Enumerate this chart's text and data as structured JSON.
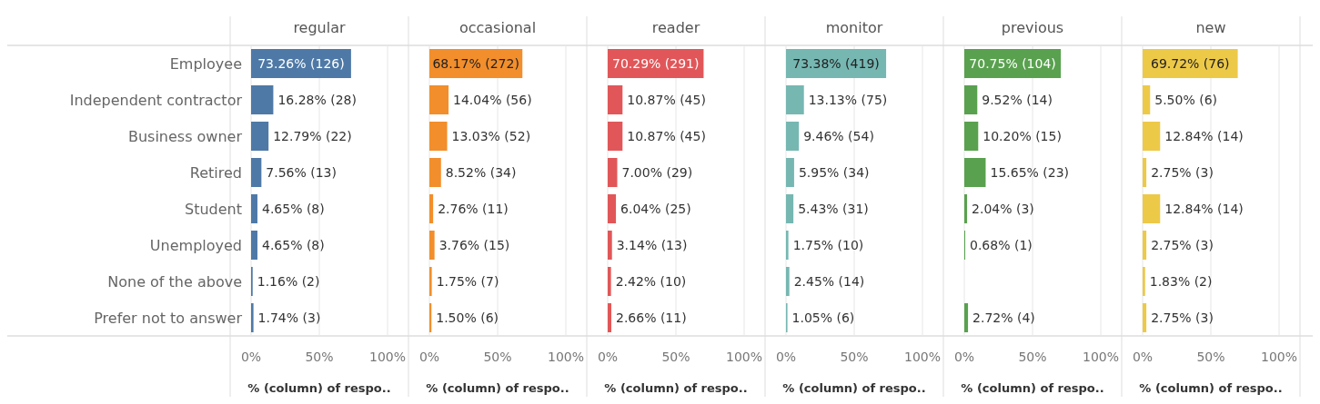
{
  "chart_data": [
    {
      "type": "bar",
      "orientation": "horizontal",
      "title": "regular",
      "xlabel": "% (column) of respo..",
      "color": "#4e79a7",
      "grid": "x",
      "categories": [
        "Employee",
        "Independent contractor",
        "Business owner",
        "Retired",
        "Student",
        "Unemployed",
        "None of the above",
        "Prefer not to answer"
      ],
      "values": [
        73.26,
        16.28,
        12.79,
        7.56,
        4.65,
        4.65,
        1.16,
        1.74
      ],
      "value_labels": [
        "73.26% (126)",
        "16.28% (28)",
        "12.79% (22)",
        "7.56% (13)",
        "4.65% (8)",
        "4.65% (8)",
        "1.16% (2)",
        "1.74% (3)"
      ],
      "xlim": [
        0,
        100
      ],
      "xticks": [
        {
          "value": 0,
          "label": "0%"
        },
        {
          "value": 50,
          "label": "50%"
        },
        {
          "value": 100,
          "label": "100%"
        }
      ]
    },
    {
      "type": "bar",
      "orientation": "horizontal",
      "title": "occasional",
      "xlabel": "% (column) of respo..",
      "color": "#f28e2b",
      "grid": "x",
      "tick_labels": "x",
      "categories": [
        null,
        null,
        null,
        null,
        null,
        null,
        null,
        null
      ],
      "values": [
        68.17,
        14.04,
        13.03,
        8.52,
        2.76,
        3.76,
        1.75,
        1.5
      ],
      "value_labels": [
        "68.17% (272)",
        "14.04% (56)",
        "13.03% (52)",
        "8.52% (34)",
        "2.76% (11)",
        "3.76% (15)",
        "1.75% (7)",
        "1.50% (6)"
      ],
      "xlim": [
        0,
        100
      ],
      "xticks": [
        {
          "value": 0,
          "label": "0%"
        },
        {
          "value": 50,
          "label": "50%"
        },
        {
          "value": 100,
          "label": "100%"
        }
      ]
    },
    {
      "type": "bar",
      "orientation": "horizontal",
      "title": "reader",
      "xlabel": "% (column) of respo..",
      "color": "#e15759",
      "grid": "x",
      "tick_labels": "x",
      "categories": [
        null,
        null,
        null,
        null,
        null,
        null,
        null,
        null
      ],
      "values": [
        70.29,
        10.87,
        10.87,
        7.0,
        6.04,
        3.14,
        2.42,
        2.66
      ],
      "value_labels": [
        "70.29% (291)",
        "10.87% (45)",
        "10.87% (45)",
        "7.00% (29)",
        "6.04% (25)",
        "3.14% (13)",
        "2.42% (10)",
        "2.66% (11)"
      ],
      "xlim": [
        0,
        100
      ],
      "xticks": [
        {
          "value": 0,
          "label": "0%"
        },
        {
          "value": 50,
          "label": "50%"
        },
        {
          "value": 100,
          "label": "100%"
        }
      ]
    },
    {
      "type": "bar",
      "orientation": "horizontal",
      "title": "monitor",
      "xlabel": "% (column) of respo..",
      "color": "#76b7b2",
      "grid": "x",
      "tick_labels": "x",
      "categories": [
        null,
        null,
        null,
        null,
        null,
        null,
        null,
        null
      ],
      "values": [
        73.38,
        13.13,
        9.46,
        5.95,
        5.43,
        1.75,
        2.45,
        1.05
      ],
      "value_labels": [
        "73.38% (419)",
        "13.13% (75)",
        "9.46% (54)",
        "5.95% (34)",
        "5.43% (31)",
        "1.75% (10)",
        "2.45% (14)",
        "1.05% (6)"
      ],
      "xlim": [
        0,
        100
      ],
      "xticks": [
        {
          "value": 0,
          "label": "0%"
        },
        {
          "value": 50,
          "label": "50%"
        },
        {
          "value": 100,
          "label": "100%"
        }
      ]
    },
    {
      "type": "bar",
      "orientation": "horizontal",
      "title": "previous",
      "xlabel": "% (column) of respo..",
      "color": "#59a14f",
      "grid": "x",
      "tick_labels": "x",
      "categories": [
        null,
        null,
        null,
        null,
        null,
        null,
        null,
        null
      ],
      "values": [
        70.75,
        9.52,
        10.2,
        15.65,
        2.04,
        0.68,
        null,
        2.72
      ],
      "value_labels": [
        "70.75% (104)",
        "9.52% (14)",
        "10.20% (15)",
        "15.65% (23)",
        "2.04% (3)",
        "0.68% (1)",
        null,
        "2.72% (4)"
      ],
      "xlim": [
        0,
        100
      ],
      "xticks": [
        {
          "value": 0,
          "label": "0%"
        },
        {
          "value": 50,
          "label": "50%"
        },
        {
          "value": 100,
          "label": "100%"
        }
      ]
    },
    {
      "type": "bar",
      "orientation": "horizontal",
      "title": "new",
      "xlabel": "% (column) of respo..",
      "color": "#edc948",
      "grid": "x",
      "tick_labels": "x",
      "categories": [
        null,
        null,
        null,
        null,
        null,
        null,
        null,
        null
      ],
      "values": [
        69.72,
        5.5,
        12.84,
        2.75,
        12.84,
        2.75,
        1.83,
        2.75
      ],
      "value_labels": [
        "69.72% (76)",
        "5.50% (6)",
        "12.84% (14)",
        "2.75% (3)",
        "12.84% (14)",
        "2.75% (3)",
        "1.83% (2)",
        "2.75% (3)"
      ],
      "xlim": [
        0,
        100
      ],
      "xticks": [
        {
          "value": 0,
          "label": "0%"
        },
        {
          "value": 50,
          "label": "50%"
        },
        {
          "value": 100,
          "label": "100%"
        }
      ]
    }
  ]
}
